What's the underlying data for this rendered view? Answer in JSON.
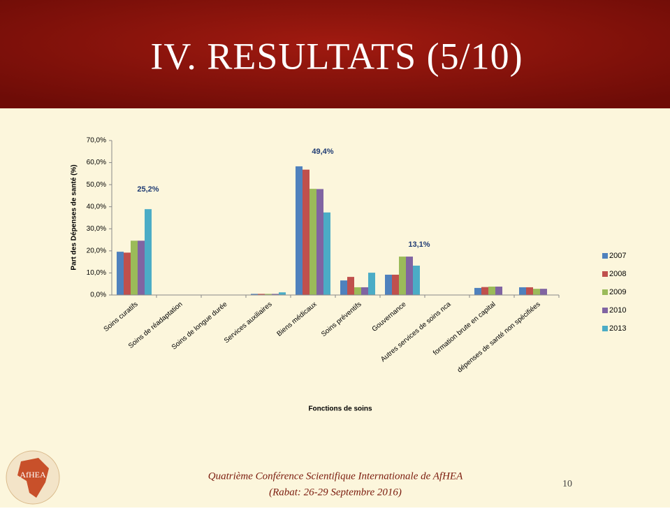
{
  "slide_title": "IV. RESULTATS (5/10)",
  "logo_text": "AfHEA",
  "footer": {
    "line1": "Quatrième Conférence Scientifique Internationale de AfHEA",
    "line2": "(Rabat: 26-29 Septembre 2016)",
    "page": "10"
  },
  "chart_data": {
    "type": "bar",
    "y_label": "Part des Dépenses de santé (%)",
    "x_label": "Fonctions de soins",
    "categories": [
      "Soins curatifs",
      "Soins de réadaptation",
      "Soins de longue durée",
      "Services auxiliaires",
      "Biens médicaux",
      "Soins préventifs",
      "Gouvernance",
      "Autres services de soins nca",
      "formation brute en capital",
      "dépenses de santé non spécifiées"
    ],
    "series": [
      {
        "name": "2007",
        "color": "#4f81bd",
        "values": [
          19.6,
          0.1,
          0.1,
          0.5,
          58.3,
          6.6,
          9.2,
          0,
          3.2,
          3.5
        ]
      },
      {
        "name": "2008",
        "color": "#c0504d",
        "values": [
          19.2,
          0.1,
          0.1,
          0.5,
          56.8,
          8.2,
          9.2,
          0,
          3.6,
          3.5
        ]
      },
      {
        "name": "2009",
        "color": "#9bbb59",
        "values": [
          24.6,
          0.1,
          0.1,
          0.5,
          48.1,
          3.5,
          17.4,
          0,
          3.8,
          2.8
        ]
      },
      {
        "name": "2010",
        "color": "#8064a2",
        "values": [
          24.6,
          0.1,
          0.1,
          0.5,
          48.0,
          3.5,
          17.4,
          0,
          3.8,
          2.8
        ]
      },
      {
        "name": "2013",
        "color": "#4bacc6",
        "values": [
          38.9,
          0.1,
          0.1,
          1.2,
          37.4,
          10.1,
          13.3,
          0,
          0,
          0
        ]
      }
    ],
    "annotations": [
      "25,2%",
      "49,4%",
      "13,1%"
    ],
    "ylim": [
      0,
      70
    ],
    "yticks": [
      {
        "value": 0,
        "label": "0,0%"
      },
      {
        "value": 10,
        "label": "10,0%"
      },
      {
        "value": 20,
        "label": "20,0%"
      },
      {
        "value": 30,
        "label": "30,0%"
      },
      {
        "value": 40,
        "label": "40,0%"
      },
      {
        "value": 50,
        "label": "50,0%"
      },
      {
        "value": 60,
        "label": "60,0%"
      },
      {
        "value": 70,
        "label": "70,0%"
      }
    ],
    "legend": "right"
  }
}
